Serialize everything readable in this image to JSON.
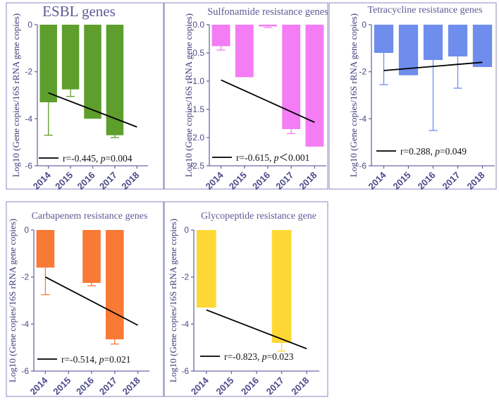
{
  "chart_data": [
    {
      "type": "bar",
      "title": "ESBL genes",
      "ylabel": "Log10 (Gene copies/16S rRNA gene copies)",
      "categories": [
        "2014",
        "2015",
        "2016",
        "2017",
        "2018"
      ],
      "ylim": [
        -6,
        0
      ],
      "yticks": [
        0,
        -2,
        -4,
        -6
      ],
      "ytick_labels": [
        "0",
        "-2",
        "-4",
        "-6"
      ],
      "color": "#5e9e2c",
      "values": [
        -3.3,
        -2.75,
        -4.0,
        -4.7,
        null
      ],
      "error": [
        1.4,
        0.3,
        null,
        0.1,
        null
      ],
      "trend": [
        -2.9,
        -4.35
      ],
      "legend": {
        "label": "r=-0.445, ",
        "p_symbol": "p",
        "p_text": "=0.004"
      }
    },
    {
      "type": "bar",
      "title": "Sulfonamide resistance genes",
      "ylabel": "Log10 (Gene copies/16S rRNA gene copies)",
      "categories": [
        "2014",
        "2015",
        "2016",
        "2017",
        "2018"
      ],
      "ylim": [
        -2.5,
        0
      ],
      "yticks": [
        0,
        -0.5,
        -1,
        -1.5,
        -2,
        -2.5
      ],
      "ytick_labels": [
        "0.0",
        "-0.5",
        "-1.0",
        "-1.5",
        "-2.0",
        "-2.5"
      ],
      "color": "#f47cf4",
      "values": [
        -0.38,
        -0.93,
        -0.03,
        -1.85,
        -2.16
      ],
      "error": [
        0.07,
        null,
        0.02,
        0.08,
        null
      ],
      "trend": [
        -0.98,
        -1.73
      ],
      "legend": {
        "label": "r=-0.615, ",
        "p_symbol": "p",
        "p_text": "＜0.001"
      }
    },
    {
      "type": "bar",
      "title": "Tetracycline resistance genes",
      "ylabel": "Log10 (Gene copies/16S rRNA gene copies)",
      "categories": [
        "2014",
        "2015",
        "2016",
        "2017",
        "2018"
      ],
      "ylim": [
        -6,
        0
      ],
      "yticks": [
        0,
        -2,
        -4,
        -6
      ],
      "ytick_labels": [
        "0",
        "-2",
        "-4",
        "-6"
      ],
      "color": "#6f8ded",
      "values": [
        -1.2,
        -2.15,
        -1.5,
        -1.35,
        -1.8
      ],
      "error": [
        1.35,
        null,
        3.0,
        1.35,
        null
      ],
      "trend": [
        -1.95,
        -1.6
      ],
      "legend": {
        "label": "r=0.288, ",
        "p_symbol": "p",
        "p_text": "=0.049"
      }
    },
    {
      "type": "bar",
      "title": "Carbapenem resistance genes",
      "ylabel": "Log10 (Gene copies/16S rRNA gene copies)",
      "categories": [
        "2014",
        "2015",
        "2016",
        "2017",
        "2018"
      ],
      "ylim": [
        -6,
        0
      ],
      "yticks": [
        0,
        -2,
        -4,
        -6
      ],
      "ytick_labels": [
        "0",
        "-2",
        "-4",
        "-6"
      ],
      "color": "#f97a35",
      "values": [
        -1.6,
        null,
        -2.25,
        -4.65,
        null
      ],
      "error": [
        1.15,
        null,
        0.12,
        0.2,
        null
      ],
      "trend": [
        -2.0,
        -4.05
      ],
      "legend": {
        "label": "r=-0.514, ",
        "p_symbol": "p",
        "p_text": "=0.021"
      }
    },
    {
      "type": "bar",
      "title": "Glycopeptide resistance gene",
      "ylabel": "Log10 (Gene copies/16S rRNA gene copies)",
      "categories": [
        "2014",
        "2015",
        "2016",
        "2017",
        "2018"
      ],
      "ylim": [
        -6,
        0
      ],
      "yticks": [
        0,
        -2,
        -4,
        -6
      ],
      "ytick_labels": [
        "0",
        "-2",
        "-4",
        "-6"
      ],
      "color": "#fdd835",
      "values": [
        -3.3,
        null,
        null,
        -4.8,
        null
      ],
      "error": [
        null,
        null,
        null,
        0.35,
        null
      ],
      "trend": [
        -3.4,
        -5.05
      ],
      "legend": {
        "label": "r=-0.823, ",
        "p_symbol": "p",
        "p_text": "=0.023"
      }
    }
  ]
}
